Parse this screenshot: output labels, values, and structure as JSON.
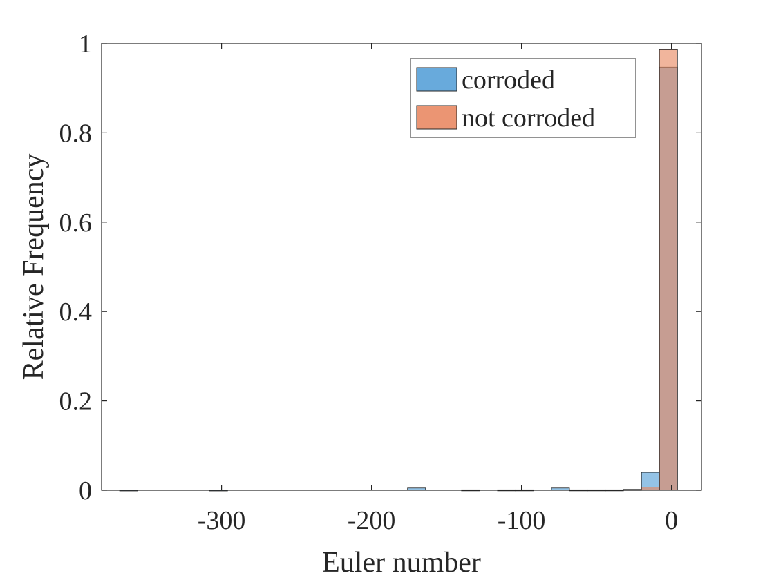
{
  "chart_data": {
    "type": "bar",
    "title": "",
    "xlabel": "Euler number",
    "ylabel": "Relative Frequency",
    "xlim": [
      -380,
      20
    ],
    "ylim": [
      0,
      1
    ],
    "xticks": [
      -300,
      -200,
      -100,
      0
    ],
    "xtick_labels": [
      "-300",
      "-200",
      "-100",
      "0"
    ],
    "yticks": [
      0,
      0.2,
      0.4,
      0.6,
      0.8,
      1
    ],
    "ytick_labels": [
      "0",
      "0.2",
      "0.4",
      "0.6",
      "0.8",
      "1"
    ],
    "bin_width": 12,
    "grid": false,
    "legend_position": "top-right",
    "series": [
      {
        "name": "corroded",
        "color": "#4d9bd6",
        "bins": [
          {
            "x0": -368,
            "value": 0.0008
          },
          {
            "x0": -308,
            "value": 0.0008
          },
          {
            "x0": -176,
            "value": 0.005
          },
          {
            "x0": -140,
            "value": 0.001
          },
          {
            "x0": -116,
            "value": 0.001
          },
          {
            "x0": -104,
            "value": 0.001
          },
          {
            "x0": -80,
            "value": 0.005
          },
          {
            "x0": -68,
            "value": 0.001
          },
          {
            "x0": -56,
            "value": 0.001
          },
          {
            "x0": -44,
            "value": 0.001
          },
          {
            "x0": -20,
            "value": 0.04
          },
          {
            "x0": -8,
            "value": 0.947
          }
        ]
      },
      {
        "name": "not corroded",
        "color": "#e8835a",
        "bins": [
          {
            "x0": -32,
            "value": 0.002
          },
          {
            "x0": -20,
            "value": 0.007
          },
          {
            "x0": -8,
            "value": 0.987
          }
        ]
      }
    ]
  }
}
